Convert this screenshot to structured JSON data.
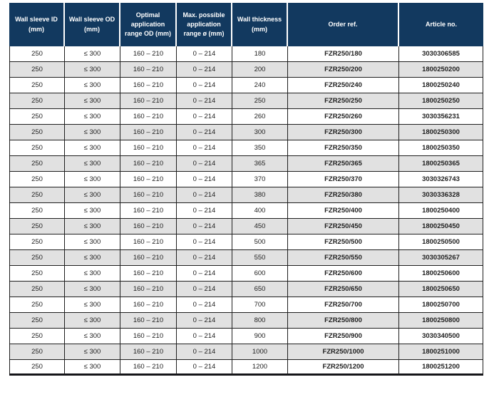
{
  "colors": {
    "header_bg": "#12395f",
    "header_text": "#ffffff",
    "row_alt_bg": "#e1e1e1",
    "grid_border": "#1f1f1f"
  },
  "table": {
    "columns": [
      "Wall sleeve ID (mm)",
      "Wall sleeve OD (mm)",
      "Optimal application range OD (mm)",
      "Max. possible application range ø (mm)",
      "Wall thickness (mm)",
      "Order ref.",
      "Article no."
    ],
    "column_keys": [
      "wall-sleeve-id",
      "wall-sleeve-od",
      "optimal-application-range-od",
      "max-possible-application-range",
      "wall-thickness",
      "order-ref",
      "article-no"
    ],
    "bold_columns": [
      5,
      6
    ],
    "rows": [
      [
        "250",
        "≤ 300",
        "160 – 210",
        "0 – 214",
        "180",
        "FZR250/180",
        "3030306585"
      ],
      [
        "250",
        "≤ 300",
        "160 – 210",
        "0 – 214",
        "200",
        "FZR250/200",
        "1800250200"
      ],
      [
        "250",
        "≤ 300",
        "160 – 210",
        "0 – 214",
        "240",
        "FZR250/240",
        "1800250240"
      ],
      [
        "250",
        "≤ 300",
        "160 – 210",
        "0 – 214",
        "250",
        "FZR250/250",
        "1800250250"
      ],
      [
        "250",
        "≤ 300",
        "160 – 210",
        "0 – 214",
        "260",
        "FZR250/260",
        "3030356231"
      ],
      [
        "250",
        "≤ 300",
        "160 – 210",
        "0 – 214",
        "300",
        "FZR250/300",
        "1800250300"
      ],
      [
        "250",
        "≤ 300",
        "160 – 210",
        "0 – 214",
        "350",
        "FZR250/350",
        "1800250350"
      ],
      [
        "250",
        "≤ 300",
        "160 – 210",
        "0 – 214",
        "365",
        "FZR250/365",
        "1800250365"
      ],
      [
        "250",
        "≤ 300",
        "160 – 210",
        "0 – 214",
        "370",
        "FZR250/370",
        "3030326743"
      ],
      [
        "250",
        "≤ 300",
        "160 – 210",
        "0 – 214",
        "380",
        "FZR250/380",
        "3030336328"
      ],
      [
        "250",
        "≤ 300",
        "160 – 210",
        "0 – 214",
        "400",
        "FZR250/400",
        "1800250400"
      ],
      [
        "250",
        "≤ 300",
        "160 – 210",
        "0 – 214",
        "450",
        "FZR250/450",
        "1800250450"
      ],
      [
        "250",
        "≤ 300",
        "160 – 210",
        "0 – 214",
        "500",
        "FZR250/500",
        "1800250500"
      ],
      [
        "250",
        "≤ 300",
        "160 – 210",
        "0 – 214",
        "550",
        "FZR250/550",
        "3030305267"
      ],
      [
        "250",
        "≤ 300",
        "160 – 210",
        "0 – 214",
        "600",
        "FZR250/600",
        "1800250600"
      ],
      [
        "250",
        "≤ 300",
        "160 – 210",
        "0 – 214",
        "650",
        "FZR250/650",
        "1800250650"
      ],
      [
        "250",
        "≤ 300",
        "160 – 210",
        "0 – 214",
        "700",
        "FZR250/700",
        "1800250700"
      ],
      [
        "250",
        "≤ 300",
        "160 – 210",
        "0 – 214",
        "800",
        "FZR250/800",
        "1800250800"
      ],
      [
        "250",
        "≤ 300",
        "160 – 210",
        "0 – 214",
        "900",
        "FZR250/900",
        "3030340500"
      ],
      [
        "250",
        "≤ 300",
        "160 – 210",
        "0 – 214",
        "1000",
        "FZR250/1000",
        "1800251000"
      ],
      [
        "250",
        "≤ 300",
        "160 – 210",
        "0 – 214",
        "1200",
        "FZR250/1200",
        "1800251200"
      ]
    ]
  }
}
